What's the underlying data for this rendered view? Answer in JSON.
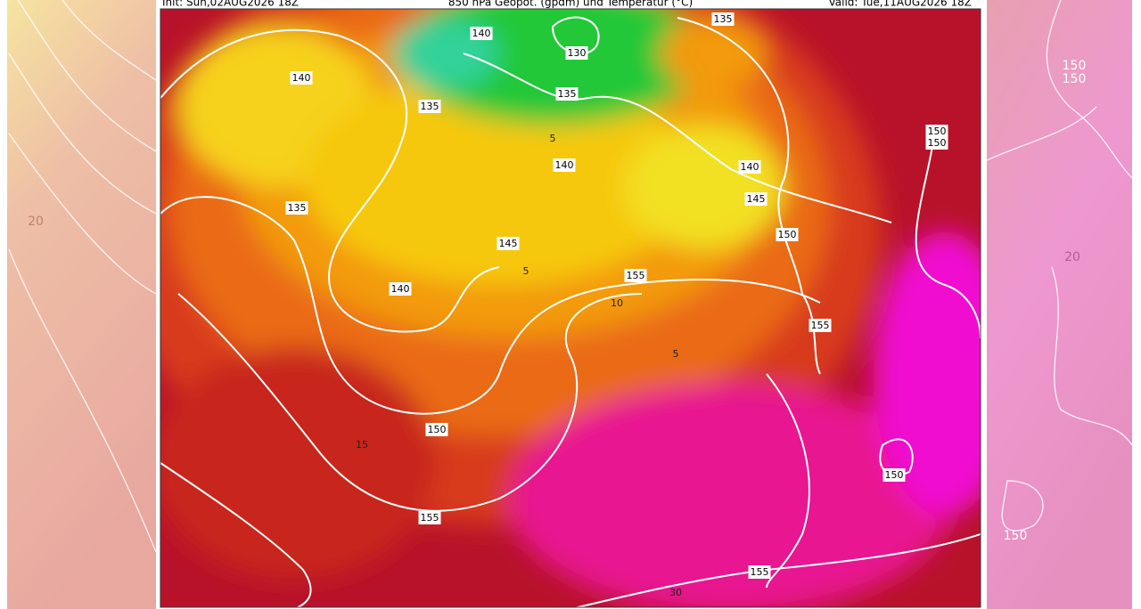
{
  "header": {
    "init": "Init: Sun,02AUG2026 18Z",
    "title": "850 hPa Geopot. (gpdm) und Temperatur (°C)",
    "valid": "Valid: Tue,11AUG2026 18Z"
  },
  "geopotential_labels": [
    140,
    130,
    140,
    135,
    135,
    135,
    150,
    150,
    140,
    140,
    145,
    135,
    150,
    145,
    155,
    140,
    155,
    150,
    150,
    155,
    155
  ],
  "temperature_labels": [
    5,
    5,
    10,
    5,
    15,
    30
  ],
  "side_panel_labels": {
    "right_geopotential": [
      150,
      150,
      150
    ],
    "right_temperature": [
      20
    ],
    "left_temperature": [
      20
    ]
  }
}
